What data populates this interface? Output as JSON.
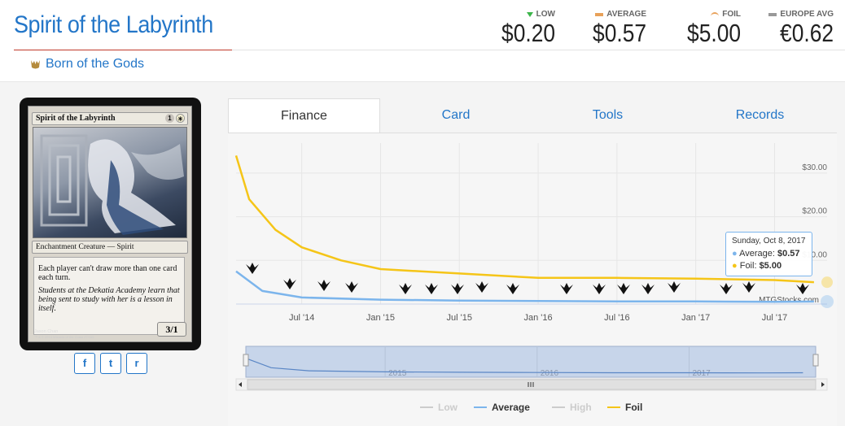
{
  "header": {
    "title": "Spirit of the Labyrinth",
    "set_name": "Born of the Gods"
  },
  "prices": {
    "low": {
      "label": "LOW",
      "value": "$0.20",
      "color": "#3cb54a"
    },
    "average": {
      "label": "AVERAGE",
      "value": "$0.57",
      "color": "#e8a15a"
    },
    "foil": {
      "label": "FOIL",
      "value": "$5.00",
      "color": "#e8a15a"
    },
    "europe": {
      "label": "EUROPE AVG",
      "value": "€0.62",
      "color": "#999999"
    }
  },
  "card": {
    "name": "Spirit of the Labyrinth",
    "mana": [
      "1",
      "W"
    ],
    "type_line": "Enchantment Creature — Spirit",
    "rules_text": "Each player can't draw more than one card each turn.",
    "flavor_text": "Students at the Dekatia Academy learn that being sent to study with her is a lesson in itself.",
    "pt": "3/1",
    "artist": "Jason Chan",
    "copyright": "™ & © 2014 Wizards of the Coast 27/165"
  },
  "share": {
    "facebook": "f",
    "twitter": "t",
    "reddit": "r"
  },
  "tabs": [
    {
      "label": "Finance",
      "active": true
    },
    {
      "label": "Card",
      "active": false
    },
    {
      "label": "Tools",
      "active": false
    },
    {
      "label": "Records",
      "active": false
    }
  ],
  "chart_data": {
    "type": "line",
    "x_ticks": [
      "Jul '14",
      "Jan '15",
      "Jul '15",
      "Jan '16",
      "Jul '16",
      "Jan '17",
      "Jul '17"
    ],
    "y_ticks": [
      "$30.00",
      "$20.00",
      "$10.00"
    ],
    "ylim": [
      0,
      35
    ],
    "grid": true,
    "credit": "MTGStocks.com",
    "navigator_labels": [
      "2015",
      "2016",
      "2017"
    ],
    "series": [
      {
        "name": "Low",
        "color": "#cccccc",
        "values": []
      },
      {
        "name": "Average",
        "color": "#7cb5ec",
        "x": [
          "2014-02",
          "2014-04",
          "2014-07",
          "2015-01",
          "2015-07",
          "2016-01",
          "2016-07",
          "2017-01",
          "2017-07",
          "2017-10"
        ],
        "values": [
          7.5,
          3.0,
          1.5,
          1.0,
          0.8,
          0.7,
          0.6,
          0.6,
          0.5,
          0.57
        ]
      },
      {
        "name": "High",
        "color": "#cccccc",
        "values": []
      },
      {
        "name": "Foil",
        "color": "#f5c518",
        "x": [
          "2014-02",
          "2014-03",
          "2014-05",
          "2014-07",
          "2014-10",
          "2015-01",
          "2015-07",
          "2016-01",
          "2016-07",
          "2017-01",
          "2017-07",
          "2017-10"
        ],
        "values": [
          34.0,
          24.0,
          17.0,
          13.0,
          10.0,
          8.0,
          7.0,
          6.0,
          6.0,
          5.8,
          5.5,
          5.0
        ]
      }
    ],
    "tooltip": {
      "date": "Sunday, Oct 8, 2017",
      "average_label": "Average:",
      "average_value": "$0.57",
      "foil_label": "Foil:",
      "foil_value": "$5.00"
    },
    "legend": [
      "Low",
      "Average",
      "High",
      "Foil"
    ]
  }
}
